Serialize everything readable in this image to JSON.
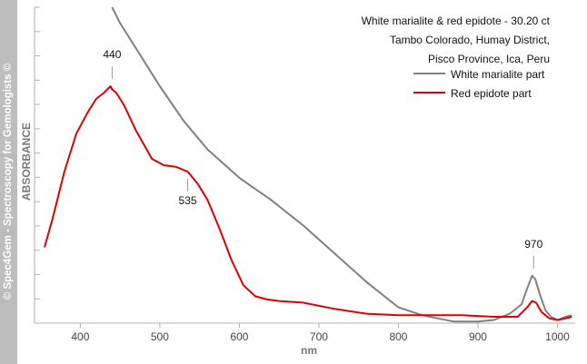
{
  "watermark": "© Spec4Gem - Spectroscopy for Gemologists ©",
  "chart_data": {
    "type": "line",
    "title_lines": [
      "White marialite & red epidote - 30.20 ct",
      "Tambo Colorado, Humay District,",
      "Pisco Province, Ica, Peru"
    ],
    "xlabel": "nm",
    "ylabel": "ABSORBANCE",
    "xlim": [
      355,
      1020
    ],
    "ylim": [
      0,
      1.0
    ],
    "xticks": [
      400,
      500,
      600,
      700,
      800,
      900,
      1000
    ],
    "tick_labels": [
      "400",
      "500",
      "600",
      "700",
      "800",
      "900",
      "1000"
    ],
    "series": [
      {
        "name": "White marialite part",
        "color": "#808080",
        "x": [
          440,
          450,
          470,
          500,
          530,
          560,
          600,
          640,
          680,
          720,
          760,
          800,
          830,
          850,
          870,
          900,
          920,
          940,
          955,
          962,
          968,
          972,
          978,
          985,
          992,
          1000,
          1010,
          1018
        ],
        "y": [
          1.0,
          0.95,
          0.87,
          0.75,
          0.64,
          0.55,
          0.46,
          0.39,
          0.31,
          0.22,
          0.13,
          0.05,
          0.025,
          0.015,
          0.005,
          0.005,
          0.01,
          0.03,
          0.06,
          0.11,
          0.15,
          0.14,
          0.09,
          0.04,
          0.02,
          0.01,
          0.02,
          0.025
        ]
      },
      {
        "name": "Red epidote part",
        "color": "#e00000",
        "x": [
          355,
          365,
          380,
          395,
          410,
          420,
          430,
          438,
          440,
          445,
          455,
          470,
          490,
          505,
          520,
          535,
          548,
          560,
          575,
          590,
          605,
          620,
          635,
          650,
          680,
          720,
          760,
          800,
          840,
          880,
          920,
          950,
          962,
          968,
          973,
          980,
          990,
          1000,
          1010,
          1018
        ],
        "y": [
          0.24,
          0.33,
          0.48,
          0.6,
          0.67,
          0.71,
          0.73,
          0.75,
          0.74,
          0.73,
          0.69,
          0.61,
          0.52,
          0.5,
          0.495,
          0.48,
          0.44,
          0.39,
          0.3,
          0.2,
          0.12,
          0.085,
          0.075,
          0.07,
          0.065,
          0.045,
          0.03,
          0.025,
          0.025,
          0.025,
          0.02,
          0.02,
          0.05,
          0.07,
          0.065,
          0.035,
          0.015,
          0.01,
          0.015,
          0.02
        ]
      }
    ],
    "annotations": [
      {
        "label": "440",
        "x": 440,
        "y": 0.75,
        "placement": "above"
      },
      {
        "label": "535",
        "x": 535,
        "y": 0.48,
        "placement": "below"
      },
      {
        "label": "970",
        "x": 970,
        "y": 0.15,
        "placement": "above"
      }
    ],
    "legend_placement": "top-right",
    "grid": false
  }
}
